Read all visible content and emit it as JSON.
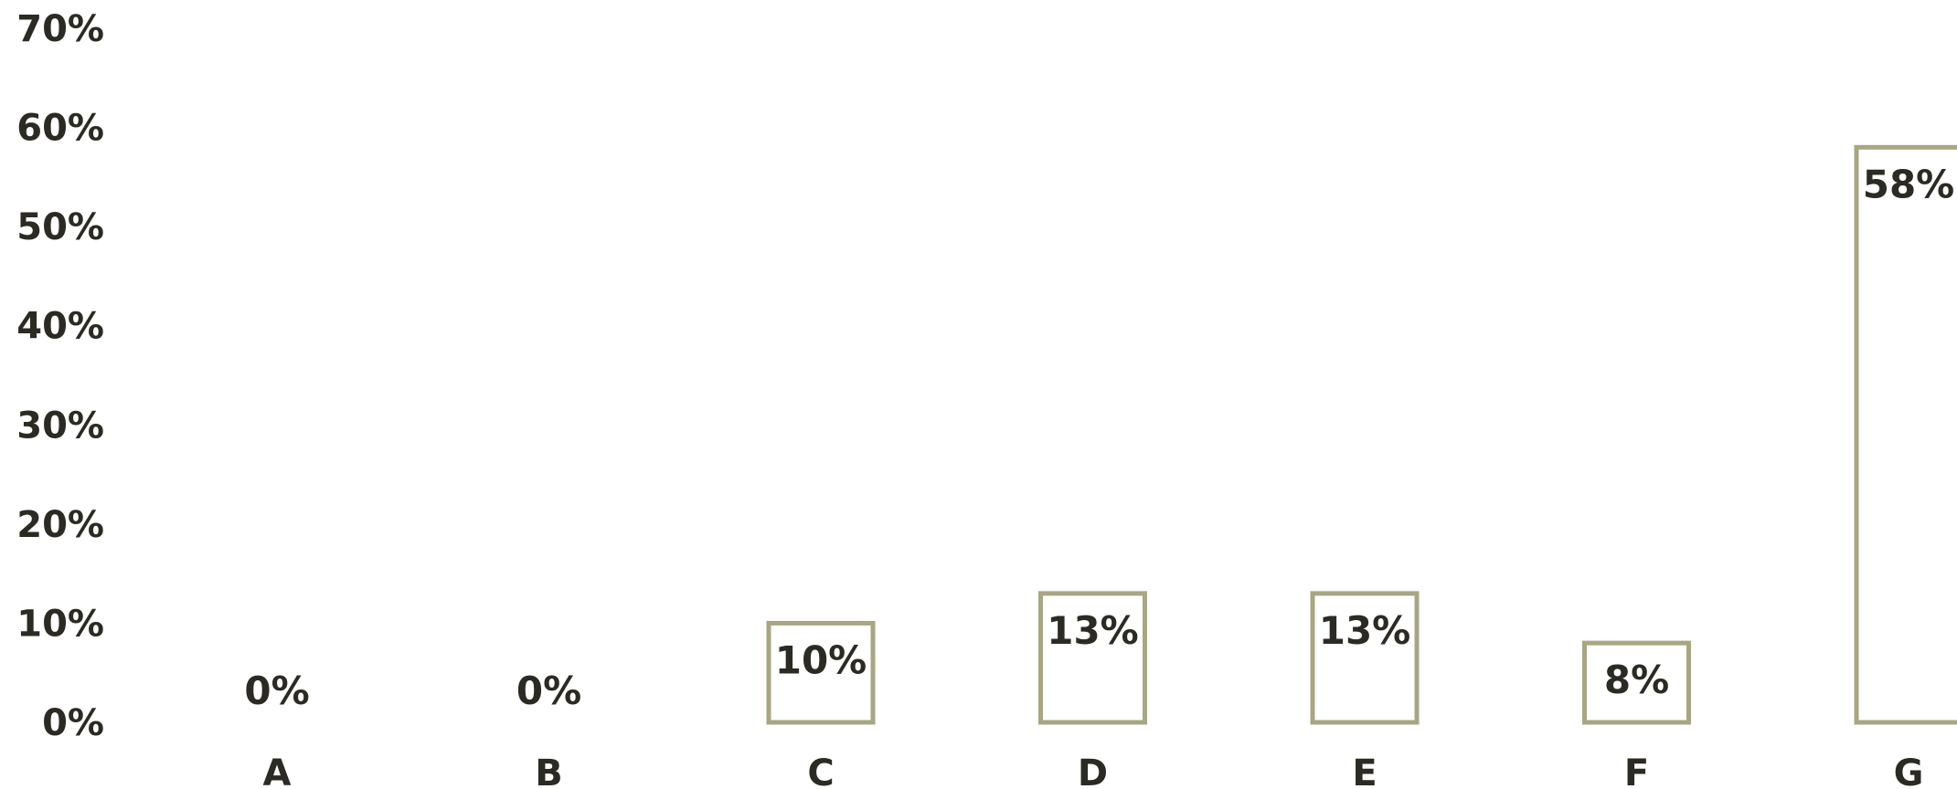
{
  "chart_data": {
    "type": "bar",
    "categories": [
      "A",
      "B",
      "C",
      "D",
      "E",
      "F",
      "G"
    ],
    "values": [
      0,
      0,
      10,
      13,
      13,
      8,
      58
    ],
    "value_labels": [
      "0%",
      "0%",
      "10%",
      "13%",
      "13%",
      "8%",
      "58%"
    ],
    "y_ticks": [
      "0%",
      "10%",
      "20%",
      "30%",
      "40%",
      "50%",
      "60%",
      "70%"
    ],
    "ylim": [
      0,
      70
    ],
    "grid": false,
    "legend": "none",
    "colors": {
      "bar_outline": "#a8a683",
      "bar_fill": "#ffffff",
      "text": "#2b2a23"
    }
  }
}
